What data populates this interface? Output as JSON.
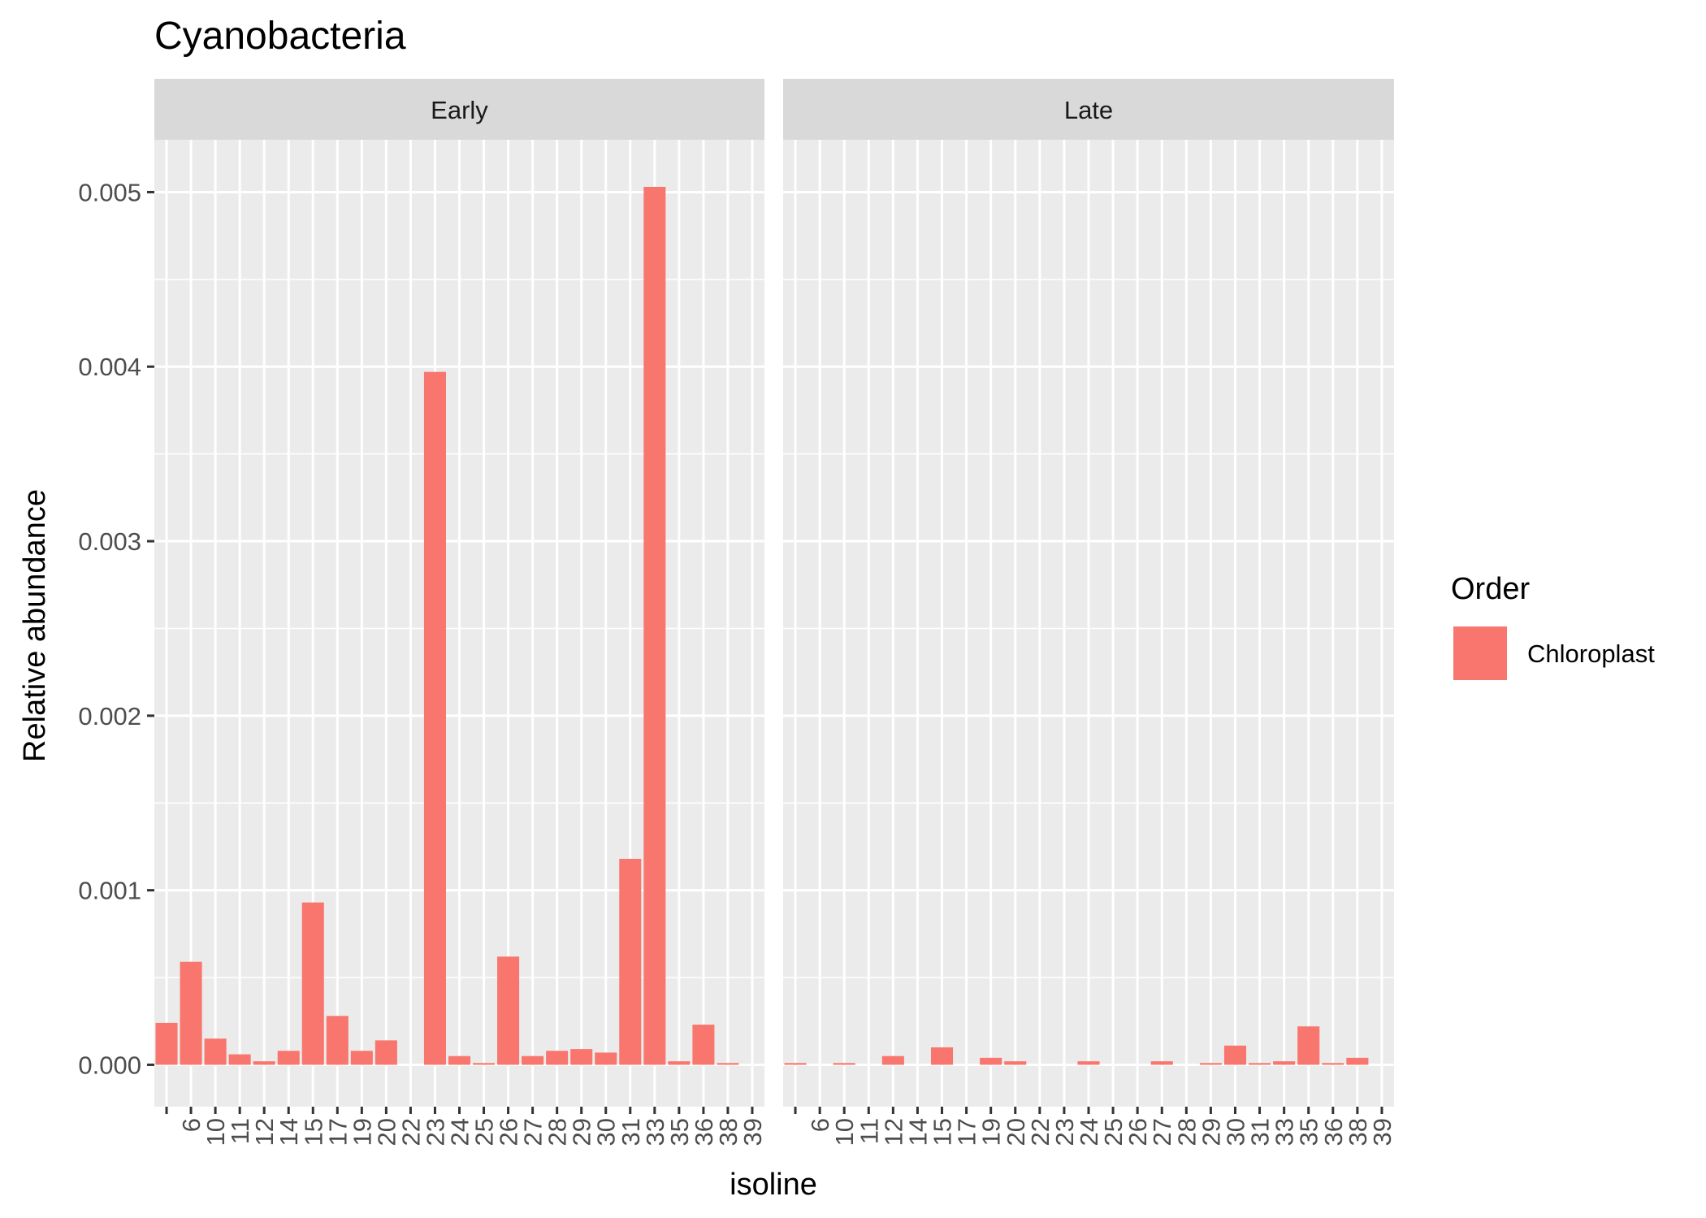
{
  "chart_data": {
    "type": "bar",
    "title": "Cyanobacteria",
    "xlabel": "isoline",
    "ylabel": "Relative abundance",
    "ylim": [
      -0.00024,
      0.0053
    ],
    "yticks": [
      "0.000",
      "0.001",
      "0.002",
      "0.003",
      "0.004",
      "0.005"
    ],
    "ytick_values": [
      0,
      0.001,
      0.002,
      0.003,
      0.004,
      0.005
    ],
    "grid": true,
    "facets": [
      "Early",
      "Late"
    ],
    "categories": [
      "",
      "6",
      "10",
      "11",
      "12",
      "14",
      "15",
      "17",
      "19",
      "20",
      "22",
      "23",
      "24",
      "25",
      "26",
      "27",
      "28",
      "29",
      "30",
      "31",
      "33",
      "35",
      "36",
      "38",
      "39"
    ],
    "series": [
      {
        "name": "Chloroplast",
        "color": "#F8766D",
        "values_by_facet": {
          "Early": [
            0.00024,
            0.00059,
            0.00015,
            6e-05,
            2e-05,
            8e-05,
            0.00093,
            0.00028,
            8e-05,
            0.00014,
            0,
            0.00397,
            5e-05,
            1e-05,
            0.00062,
            5e-05,
            8e-05,
            9e-05,
            7e-05,
            0.00118,
            0.00503,
            2e-05,
            0.00023,
            1e-05,
            0
          ],
          "Late": [
            1e-05,
            0,
            1e-05,
            0,
            5e-05,
            0,
            0.0001,
            0,
            4e-05,
            2e-05,
            0,
            0,
            2e-05,
            0,
            0,
            2e-05,
            0,
            1e-05,
            0.00011,
            1e-05,
            2e-05,
            0.00022,
            1e-05,
            4e-05,
            0
          ]
        }
      }
    ],
    "legend": {
      "title": "Order",
      "position": "right",
      "items": [
        "Chloroplast"
      ]
    }
  }
}
